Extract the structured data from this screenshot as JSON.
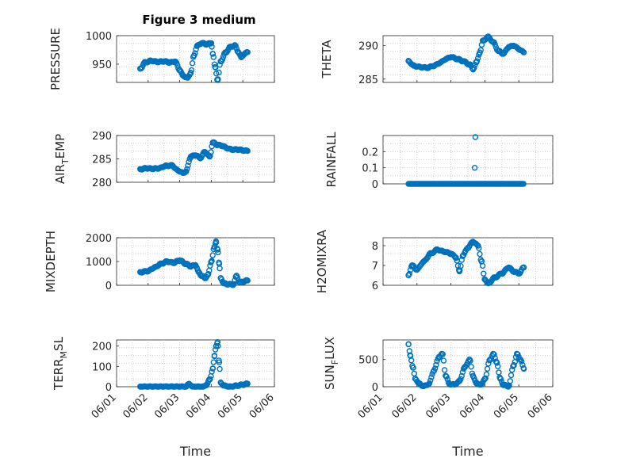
{
  "figure_title": "Figure 3 medium",
  "series_color": "#0072BD",
  "chart_data": [
    {
      "type": "scatter",
      "ylabel": "PRESSURE",
      "ylim": [
        918,
        1000
      ],
      "yticks": [
        950,
        1000
      ],
      "ytick_labels": [
        "950",
        "1000"
      ],
      "xlim": [
        0,
        5
      ],
      "xticks": [
        0,
        1,
        2,
        3,
        4,
        5
      ],
      "xtick_labels": [
        "06/01",
        "06/02",
        "06/03",
        "06/04",
        "06/05",
        "06/06"
      ],
      "show_xticklabels": false,
      "xlabel": "",
      "grid": "on",
      "keys": [
        [
          0.75,
          942
        ],
        [
          0.9,
          953
        ],
        [
          1.1,
          956
        ],
        [
          1.3,
          954
        ],
        [
          1.5,
          955
        ],
        [
          1.7,
          953
        ],
        [
          1.85,
          955
        ],
        [
          2.0,
          940
        ],
        [
          2.1,
          930
        ],
        [
          2.25,
          926
        ],
        [
          2.35,
          935
        ],
        [
          2.45,
          965
        ],
        [
          2.55,
          982
        ],
        [
          2.7,
          987
        ],
        [
          2.85,
          985
        ],
        [
          3.0,
          987
        ],
        [
          3.05,
          968
        ],
        [
          3.12,
          945
        ],
        [
          3.2,
          922
        ],
        [
          3.3,
          955
        ],
        [
          3.45,
          970
        ],
        [
          3.6,
          980
        ],
        [
          3.75,
          983
        ],
        [
          3.85,
          972
        ],
        [
          3.95,
          962
        ],
        [
          4.05,
          968
        ],
        [
          4.15,
          971
        ]
      ]
    },
    {
      "type": "scatter",
      "ylabel": "THETA",
      "ylim": [
        284.5,
        291.5
      ],
      "yticks": [
        285,
        290
      ],
      "ytick_labels": [
        "285",
        "290"
      ],
      "xlim": [
        0,
        5
      ],
      "xticks": [
        0,
        1,
        2,
        3,
        4,
        5
      ],
      "xtick_labels": [
        "06/01",
        "06/02",
        "06/03",
        "06/04",
        "06/05",
        "06/06"
      ],
      "show_xticklabels": false,
      "xlabel": "",
      "grid": "on",
      "keys": [
        [
          0.75,
          287.7
        ],
        [
          0.9,
          287.0
        ],
        [
          1.1,
          286.8
        ],
        [
          1.3,
          286.7
        ],
        [
          1.5,
          287.0
        ],
        [
          1.7,
          287.5
        ],
        [
          1.85,
          288.0
        ],
        [
          2.0,
          288.3
        ],
        [
          2.2,
          288.0
        ],
        [
          2.35,
          287.7
        ],
        [
          2.55,
          287.2
        ],
        [
          2.65,
          286.5
        ],
        [
          2.75,
          287.5
        ],
        [
          2.85,
          289.0
        ],
        [
          2.95,
          290.8
        ],
        [
          3.1,
          291.3
        ],
        [
          3.25,
          290.5
        ],
        [
          3.4,
          289.2
        ],
        [
          3.55,
          288.8
        ],
        [
          3.7,
          289.8
        ],
        [
          3.85,
          290.0
        ],
        [
          4.0,
          289.5
        ],
        [
          4.15,
          289.0
        ]
      ]
    },
    {
      "type": "scatter",
      "ylabel": "AIR_TEMP",
      "ylim": [
        280,
        290
      ],
      "yticks": [
        280,
        285,
        290
      ],
      "ytick_labels": [
        "280",
        "285",
        "290"
      ],
      "xlim": [
        0,
        5
      ],
      "xticks": [
        0,
        1,
        2,
        3,
        4,
        5
      ],
      "xtick_labels": [
        "06/01",
        "06/02",
        "06/03",
        "06/04",
        "06/05",
        "06/06"
      ],
      "show_xticklabels": false,
      "xlabel": "",
      "grid": "on",
      "keys": [
        [
          0.75,
          282.8
        ],
        [
          0.95,
          283.0
        ],
        [
          1.15,
          282.9
        ],
        [
          1.35,
          283.0
        ],
        [
          1.55,
          283.5
        ],
        [
          1.75,
          283.6
        ],
        [
          1.95,
          282.5
        ],
        [
          2.1,
          282.0
        ],
        [
          2.2,
          282.3
        ],
        [
          2.35,
          285.5
        ],
        [
          2.5,
          285.8
        ],
        [
          2.65,
          285.2
        ],
        [
          2.8,
          286.5
        ],
        [
          2.95,
          285.5
        ],
        [
          3.05,
          288.5
        ],
        [
          3.2,
          288.0
        ],
        [
          3.35,
          287.8
        ],
        [
          3.5,
          287.3
        ],
        [
          3.65,
          287.0
        ],
        [
          3.85,
          287.0
        ],
        [
          4.05,
          286.8
        ],
        [
          4.15,
          286.7
        ]
      ]
    },
    {
      "type": "scatter",
      "ylabel": "RAINFALL",
      "ylim": [
        0,
        0.3
      ],
      "yticks": [
        0,
        0.1,
        0.2
      ],
      "ytick_labels": [
        "0",
        "0.1",
        "0.2"
      ],
      "xlim": [
        0,
        5
      ],
      "xticks": [
        0,
        1,
        2,
        3,
        4,
        5
      ],
      "xtick_labels": [
        "06/01",
        "06/02",
        "06/03",
        "06/04",
        "06/05",
        "06/06"
      ],
      "show_xticklabels": false,
      "xlabel": "",
      "grid": "on",
      "keys": [
        [
          0.75,
          0
        ],
        [
          2.65,
          0
        ],
        [
          2.7,
          0.1
        ],
        [
          2.72,
          0.29
        ],
        [
          2.75,
          0
        ],
        [
          4.15,
          0
        ]
      ]
    },
    {
      "type": "scatter",
      "ylabel": "MIXDEPTH",
      "ylim": [
        0,
        2000
      ],
      "yticks": [
        0,
        1000,
        2000
      ],
      "ytick_labels": [
        "0",
        "1000",
        "2000"
      ],
      "xlim": [
        0,
        5
      ],
      "xticks": [
        0,
        1,
        2,
        3,
        4,
        5
      ],
      "xtick_labels": [
        "06/01",
        "06/02",
        "06/03",
        "06/04",
        "06/05",
        "06/06"
      ],
      "show_xticklabels": false,
      "xlabel": "",
      "grid": "on",
      "keys": [
        [
          0.75,
          550
        ],
        [
          1.0,
          600
        ],
        [
          1.2,
          750
        ],
        [
          1.4,
          900
        ],
        [
          1.6,
          1000
        ],
        [
          1.8,
          950
        ],
        [
          2.0,
          1050
        ],
        [
          2.2,
          900
        ],
        [
          2.35,
          800
        ],
        [
          2.5,
          850
        ],
        [
          2.6,
          550
        ],
        [
          2.7,
          400
        ],
        [
          2.8,
          300
        ],
        [
          2.9,
          450
        ],
        [
          3.0,
          1000
        ],
        [
          3.1,
          1600
        ],
        [
          3.15,
          1850
        ],
        [
          3.2,
          1500
        ],
        [
          3.25,
          900
        ],
        [
          3.3,
          300
        ],
        [
          3.4,
          80
        ],
        [
          3.5,
          50
        ],
        [
          3.7,
          30
        ],
        [
          3.8,
          400
        ],
        [
          3.9,
          120
        ],
        [
          4.0,
          150
        ],
        [
          4.15,
          200
        ]
      ]
    },
    {
      "type": "scatter",
      "ylabel": "H2OMIXRA",
      "ylim": [
        6,
        8.4
      ],
      "yticks": [
        6,
        7,
        8
      ],
      "ytick_labels": [
        "6",
        "7",
        "8"
      ],
      "xlim": [
        0,
        5
      ],
      "xticks": [
        0,
        1,
        2,
        3,
        4,
        5
      ],
      "xtick_labels": [
        "06/01",
        "06/02",
        "06/03",
        "06/04",
        "06/05",
        "06/06"
      ],
      "show_xticklabels": false,
      "xlabel": "",
      "grid": "on",
      "keys": [
        [
          0.75,
          6.5
        ],
        [
          0.85,
          7.0
        ],
        [
          1.0,
          6.8
        ],
        [
          1.2,
          7.2
        ],
        [
          1.4,
          7.6
        ],
        [
          1.6,
          7.8
        ],
        [
          1.8,
          7.7
        ],
        [
          2.0,
          7.6
        ],
        [
          2.15,
          7.4
        ],
        [
          2.25,
          6.7
        ],
        [
          2.35,
          7.5
        ],
        [
          2.5,
          7.9
        ],
        [
          2.65,
          8.2
        ],
        [
          2.8,
          8.0
        ],
        [
          2.9,
          7.2
        ],
        [
          3.0,
          6.3
        ],
        [
          3.1,
          6.1
        ],
        [
          3.3,
          6.4
        ],
        [
          3.5,
          6.6
        ],
        [
          3.7,
          6.9
        ],
        [
          3.85,
          6.7
        ],
        [
          4.0,
          6.6
        ],
        [
          4.15,
          6.9
        ]
      ]
    },
    {
      "type": "scatter",
      "ylabel": "TERR_MSL",
      "ylim": [
        0,
        230
      ],
      "yticks": [
        0,
        100,
        200
      ],
      "ytick_labels": [
        "0",
        "100",
        "200"
      ],
      "xlim": [
        0,
        5
      ],
      "xticks": [
        0,
        1,
        2,
        3,
        4,
        5
      ],
      "xtick_labels": [
        "06/01",
        "06/02",
        "06/03",
        "06/04",
        "06/05",
        "06/06"
      ],
      "show_xticklabels": true,
      "xlabel": "Time",
      "grid": "on",
      "keys": [
        [
          0.75,
          0
        ],
        [
          2.2,
          0
        ],
        [
          2.3,
          15
        ],
        [
          2.4,
          0
        ],
        [
          2.75,
          0
        ],
        [
          2.85,
          10
        ],
        [
          2.95,
          35
        ],
        [
          3.05,
          90
        ],
        [
          3.1,
          150
        ],
        [
          3.15,
          200
        ],
        [
          3.2,
          220
        ],
        [
          3.25,
          120
        ],
        [
          3.3,
          20
        ],
        [
          3.4,
          5
        ],
        [
          3.6,
          0
        ],
        [
          3.8,
          5
        ],
        [
          4.0,
          10
        ],
        [
          4.15,
          15
        ]
      ]
    },
    {
      "type": "scatter",
      "ylabel": "SUN_FLUX",
      "ylim": [
        0,
        860
      ],
      "yticks": [
        0,
        500
      ],
      "ytick_labels": [
        "0",
        "500"
      ],
      "xlim": [
        0,
        5
      ],
      "xticks": [
        0,
        1,
        2,
        3,
        4,
        5
      ],
      "xtick_labels": [
        "06/01",
        "06/02",
        "06/03",
        "06/04",
        "06/05",
        "06/06"
      ],
      "show_xticklabels": true,
      "xlabel": "Time",
      "grid": "on",
      "keys": [
        [
          0.75,
          780
        ],
        [
          0.8,
          580
        ],
        [
          0.88,
          350
        ],
        [
          0.95,
          150
        ],
        [
          1.05,
          60
        ],
        [
          1.2,
          10
        ],
        [
          1.35,
          50
        ],
        [
          1.5,
          300
        ],
        [
          1.65,
          550
        ],
        [
          1.75,
          600
        ],
        [
          1.85,
          200
        ],
        [
          1.95,
          50
        ],
        [
          2.1,
          40
        ],
        [
          2.25,
          100
        ],
        [
          2.4,
          350
        ],
        [
          2.55,
          500
        ],
        [
          2.65,
          200
        ],
        [
          2.75,
          60
        ],
        [
          2.9,
          40
        ],
        [
          3.0,
          150
        ],
        [
          3.15,
          500
        ],
        [
          3.25,
          600
        ],
        [
          3.35,
          450
        ],
        [
          3.45,
          150
        ],
        [
          3.55,
          30
        ],
        [
          3.7,
          10
        ],
        [
          3.85,
          400
        ],
        [
          3.95,
          600
        ],
        [
          4.05,
          500
        ],
        [
          4.15,
          330
        ]
      ]
    }
  ]
}
